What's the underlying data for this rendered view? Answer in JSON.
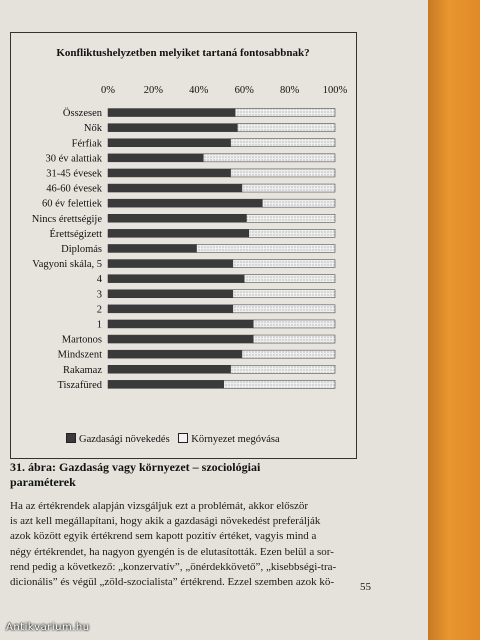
{
  "chart_data": {
    "type": "bar",
    "orientation": "horizontal",
    "stacked": true,
    "title": "Konfliktushelyzetben melyiket tartaná fontosabbnak?",
    "xlim": [
      0,
      100
    ],
    "x_ticks": [
      "0%",
      "20%",
      "40%",
      "60%",
      "80%",
      "100%"
    ],
    "categories": [
      "Összesen",
      "Nők",
      "Férfiak",
      "30 év alattiak",
      "31-45 évesek",
      "46-60 évesek",
      "60 év felettiek",
      "Nincs érettségije",
      "Érettségizett",
      "Diplomás",
      "Vagyoni skála, 5",
      "4",
      "3",
      "2",
      "1",
      "Martonos",
      "Mindszent",
      "Rakamaz",
      "Tiszafüred"
    ],
    "series": [
      {
        "name": "Gazdasági növekedés",
        "color": "#3a3a3a",
        "values": [
          56,
          57,
          54,
          42,
          54,
          59,
          68,
          61,
          62,
          39,
          55,
          60,
          55,
          55,
          64,
          64,
          59,
          54,
          51
        ]
      },
      {
        "name": "Környezet megóvása",
        "color": "#f2f2f2",
        "values": [
          44,
          43,
          46,
          58,
          46,
          41,
          32,
          39,
          38,
          61,
          45,
          40,
          45,
          45,
          36,
          36,
          41,
          46,
          49
        ]
      }
    ],
    "legend_position": "bottom"
  },
  "caption": {
    "line1": "31. ábra: Gazdaság vagy környezet – szociológiai",
    "line2": "paraméterek"
  },
  "body_text": [
    "Ha az értékrendek alapján vizsgáljuk ezt a problémát, akkor először",
    "is azt kell megállapítani, hogy akik a gazdasági növekedést preferálják",
    "azok között egyik értékrend sem kapott pozitív értéket, vagyis mind a",
    "négy értékrendet, ha nagyon gyengén is de elutasították. Ezen belül a sor-",
    "rend pedig a következő: „konzervatív”, „önérdekkövető”, „kisebbségi-tra-",
    "dicionális” és végül „zöld-szocialista” értékrend. Ezzel szemben azok kö-"
  ],
  "page_number": "55",
  "watermark": "Antikvarium.hu"
}
